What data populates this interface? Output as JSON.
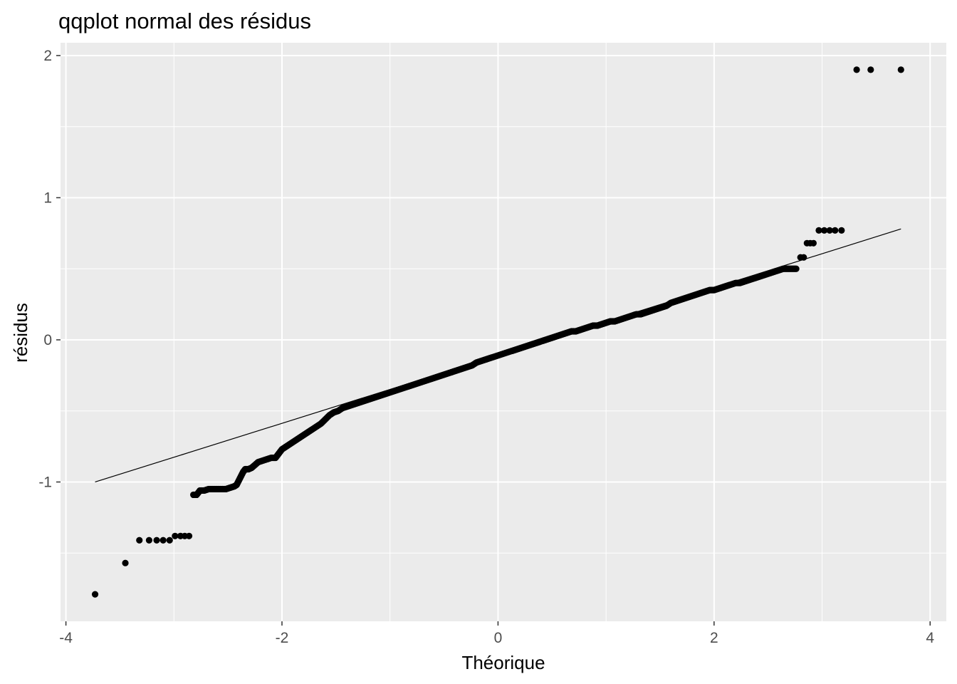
{
  "chart_data": {
    "type": "scatter",
    "title": "qqplot normal des résidus",
    "xlabel": "Théorique",
    "ylabel": "résidus",
    "xlim": [
      -4.05,
      4.15
    ],
    "ylim": [
      -1.98,
      2.09
    ],
    "x_ticks": [
      -4,
      -2,
      0,
      2,
      4
    ],
    "x_tick_labels": [
      "-4",
      "-2",
      "0",
      "2",
      "4"
    ],
    "y_ticks": [
      -1,
      0,
      1,
      2
    ],
    "y_tick_labels": [
      "-1",
      "0",
      "1",
      "2"
    ],
    "grid": true,
    "legend": "none",
    "background": "#ebebeb",
    "grid_color": "#ffffff",
    "point_color": "#000000",
    "reference_line": {
      "x": [
        -3.73,
        3.73
      ],
      "y": [
        -1.0,
        0.78
      ]
    },
    "series": [
      {
        "values": [
          [
            -3.73,
            -1.79
          ],
          [
            -3.45,
            -1.57
          ],
          [
            -3.32,
            -1.41
          ],
          [
            -3.23,
            -1.41
          ],
          [
            -3.16,
            -1.41
          ],
          [
            -3.1,
            -1.41
          ],
          [
            -3.04,
            -1.41
          ],
          [
            -2.99,
            -1.38
          ],
          [
            -2.94,
            -1.38
          ],
          [
            -2.9,
            -1.38
          ],
          [
            -2.86,
            -1.38
          ],
          [
            -2.82,
            -1.09
          ],
          [
            -2.79,
            -1.09
          ],
          [
            -2.76,
            -1.06
          ],
          [
            -2.72,
            -1.06
          ],
          [
            -2.68,
            -1.05
          ],
          [
            -2.64,
            -1.05
          ],
          [
            -2.6,
            -1.05
          ],
          [
            -2.56,
            -1.05
          ],
          [
            -2.52,
            -1.05
          ],
          [
            -2.48,
            -1.04
          ],
          [
            -2.44,
            -1.03
          ],
          [
            -2.42,
            -1.02
          ],
          [
            -2.4,
            -0.99
          ],
          [
            -2.38,
            -0.96
          ],
          [
            -2.36,
            -0.93
          ],
          [
            -2.34,
            -0.91
          ],
          [
            -2.31,
            -0.91
          ],
          [
            -2.28,
            -0.9
          ],
          [
            -2.25,
            -0.88
          ],
          [
            -2.22,
            -0.86
          ],
          [
            -2.18,
            -0.85
          ],
          [
            -2.14,
            -0.84
          ],
          [
            -2.1,
            -0.83
          ],
          [
            -2.06,
            -0.83
          ],
          [
            -2.03,
            -0.8
          ],
          [
            -2.0,
            -0.77
          ],
          [
            -1.96,
            -0.75
          ],
          [
            -1.92,
            -0.73
          ],
          [
            -1.88,
            -0.71
          ],
          [
            -1.84,
            -0.69
          ],
          [
            -1.8,
            -0.67
          ],
          [
            -1.76,
            -0.65
          ],
          [
            -1.72,
            -0.63
          ],
          [
            -1.68,
            -0.61
          ],
          [
            -1.64,
            -0.59
          ],
          [
            -1.6,
            -0.56
          ],
          [
            -1.56,
            -0.53
          ],
          [
            -1.52,
            -0.51
          ],
          [
            -1.48,
            -0.5
          ],
          [
            -1.44,
            -0.48
          ],
          [
            -1.4,
            -0.47
          ],
          [
            -1.36,
            -0.46
          ],
          [
            -1.32,
            -0.45
          ],
          [
            -1.28,
            -0.44
          ],
          [
            -1.24,
            -0.43
          ],
          [
            -1.2,
            -0.42
          ],
          [
            -1.16,
            -0.41
          ],
          [
            -1.12,
            -0.4
          ],
          [
            -1.08,
            -0.39
          ],
          [
            -1.04,
            -0.38
          ],
          [
            -1.0,
            -0.37
          ],
          [
            -0.96,
            -0.36
          ],
          [
            -0.92,
            -0.35
          ],
          [
            -0.88,
            -0.34
          ],
          [
            -0.84,
            -0.33
          ],
          [
            -0.8,
            -0.32
          ],
          [
            -0.76,
            -0.31
          ],
          [
            -0.72,
            -0.3
          ],
          [
            -0.68,
            -0.29
          ],
          [
            -0.64,
            -0.28
          ],
          [
            -0.6,
            -0.27
          ],
          [
            -0.56,
            -0.26
          ],
          [
            -0.52,
            -0.25
          ],
          [
            -0.48,
            -0.24
          ],
          [
            -0.44,
            -0.23
          ],
          [
            -0.4,
            -0.22
          ],
          [
            -0.36,
            -0.21
          ],
          [
            -0.32,
            -0.2
          ],
          [
            -0.28,
            -0.19
          ],
          [
            -0.24,
            -0.18
          ],
          [
            -0.2,
            -0.16
          ],
          [
            -0.16,
            -0.15
          ],
          [
            -0.12,
            -0.14
          ],
          [
            -0.08,
            -0.13
          ],
          [
            -0.04,
            -0.12
          ],
          [
            0.0,
            -0.11
          ],
          [
            0.04,
            -0.1
          ],
          [
            0.08,
            -0.09
          ],
          [
            0.12,
            -0.08
          ],
          [
            0.16,
            -0.07
          ],
          [
            0.2,
            -0.06
          ],
          [
            0.24,
            -0.05
          ],
          [
            0.28,
            -0.04
          ],
          [
            0.32,
            -0.03
          ],
          [
            0.36,
            -0.02
          ],
          [
            0.4,
            -0.01
          ],
          [
            0.44,
            0.0
          ],
          [
            0.48,
            0.01
          ],
          [
            0.52,
            0.02
          ],
          [
            0.56,
            0.03
          ],
          [
            0.6,
            0.04
          ],
          [
            0.64,
            0.05
          ],
          [
            0.68,
            0.06
          ],
          [
            0.72,
            0.06
          ],
          [
            0.76,
            0.07
          ],
          [
            0.8,
            0.08
          ],
          [
            0.84,
            0.09
          ],
          [
            0.88,
            0.1
          ],
          [
            0.92,
            0.1
          ],
          [
            0.96,
            0.11
          ],
          [
            1.0,
            0.12
          ],
          [
            1.04,
            0.13
          ],
          [
            1.08,
            0.13
          ],
          [
            1.12,
            0.14
          ],
          [
            1.16,
            0.15
          ],
          [
            1.2,
            0.16
          ],
          [
            1.24,
            0.17
          ],
          [
            1.28,
            0.18
          ],
          [
            1.32,
            0.18
          ],
          [
            1.36,
            0.19
          ],
          [
            1.4,
            0.2
          ],
          [
            1.44,
            0.21
          ],
          [
            1.48,
            0.22
          ],
          [
            1.52,
            0.23
          ],
          [
            1.56,
            0.24
          ],
          [
            1.6,
            0.26
          ],
          [
            1.64,
            0.27
          ],
          [
            1.68,
            0.28
          ],
          [
            1.72,
            0.29
          ],
          [
            1.76,
            0.3
          ],
          [
            1.8,
            0.31
          ],
          [
            1.84,
            0.32
          ],
          [
            1.88,
            0.33
          ],
          [
            1.92,
            0.34
          ],
          [
            1.96,
            0.35
          ],
          [
            2.0,
            0.35
          ],
          [
            2.04,
            0.36
          ],
          [
            2.08,
            0.37
          ],
          [
            2.12,
            0.38
          ],
          [
            2.16,
            0.39
          ],
          [
            2.2,
            0.4
          ],
          [
            2.24,
            0.4
          ],
          [
            2.28,
            0.41
          ],
          [
            2.32,
            0.42
          ],
          [
            2.36,
            0.43
          ],
          [
            2.4,
            0.44
          ],
          [
            2.44,
            0.45
          ],
          [
            2.48,
            0.46
          ],
          [
            2.52,
            0.47
          ],
          [
            2.56,
            0.48
          ],
          [
            2.6,
            0.49
          ],
          [
            2.64,
            0.5
          ],
          [
            2.68,
            0.5
          ],
          [
            2.72,
            0.5
          ],
          [
            2.76,
            0.5
          ],
          [
            2.8,
            0.58
          ],
          [
            2.83,
            0.58
          ],
          [
            2.86,
            0.68
          ],
          [
            2.89,
            0.68
          ],
          [
            2.92,
            0.68
          ],
          [
            2.97,
            0.77
          ],
          [
            3.02,
            0.77
          ],
          [
            3.07,
            0.77
          ],
          [
            3.12,
            0.77
          ],
          [
            3.18,
            0.77
          ],
          [
            3.32,
            1.9
          ],
          [
            3.45,
            1.9
          ],
          [
            3.73,
            1.9
          ]
        ]
      }
    ]
  }
}
